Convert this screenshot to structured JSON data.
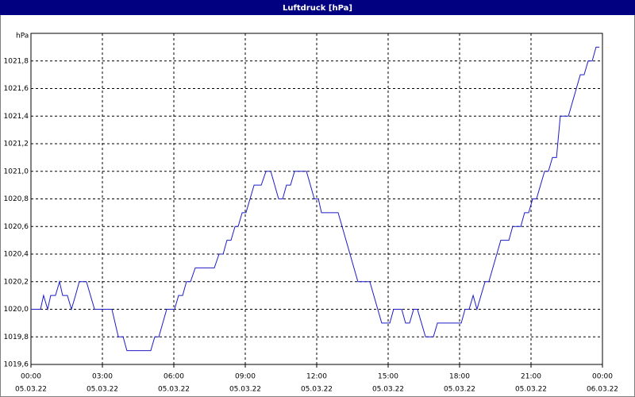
{
  "chart_data": {
    "type": "line",
    "title": "Luftdruck [hPa]",
    "y_label": "hPa",
    "x": [
      0,
      0.4,
      0.53,
      0.7,
      0.83,
      1.03,
      1.2,
      1.33,
      1.53,
      1.7,
      1.87,
      2.03,
      2.33,
      2.67,
      3.4,
      3.67,
      3.87,
      4.03,
      5.03,
      5.2,
      5.37,
      5.7,
      6.03,
      6.2,
      6.37,
      6.53,
      6.7,
      6.9,
      7.7,
      7.9,
      8.07,
      8.23,
      8.4,
      8.57,
      8.7,
      8.87,
      9.03,
      9.37,
      9.67,
      9.87,
      10.07,
      10.4,
      10.57,
      10.73,
      10.9,
      11.07,
      11.57,
      11.9,
      12.07,
      12.2,
      12.9,
      13.73,
      14.23,
      14.73,
      15.07,
      15.23,
      15.57,
      15.73,
      15.9,
      16.07,
      16.23,
      16.57,
      16.9,
      17.07,
      18.07,
      18.23,
      18.4,
      18.57,
      18.73,
      19.07,
      19.23,
      19.73,
      20.07,
      20.23,
      20.57,
      20.73,
      20.9,
      21.07,
      21.23,
      21.57,
      21.73,
      21.9,
      22.07,
      22.23,
      22.57,
      23.07,
      23.23,
      23.4,
      23.57,
      23.73,
      23.87
    ],
    "values": [
      1020.0,
      1020.0,
      1020.1,
      1020.0,
      1020.1,
      1020.1,
      1020.2,
      1020.1,
      1020.1,
      1020.0,
      1020.1,
      1020.2,
      1020.2,
      1020.0,
      1020.0,
      1019.8,
      1019.8,
      1019.7,
      1019.7,
      1019.8,
      1019.8,
      1020.0,
      1020.0,
      1020.1,
      1020.1,
      1020.2,
      1020.2,
      1020.3,
      1020.3,
      1020.4,
      1020.4,
      1020.5,
      1020.5,
      1020.6,
      1020.6,
      1020.7,
      1020.7,
      1020.9,
      1020.9,
      1021.0,
      1021.0,
      1020.8,
      1020.8,
      1020.9,
      1020.9,
      1021.0,
      1021.0,
      1020.8,
      1020.8,
      1020.7,
      1020.7,
      1020.2,
      1020.2,
      1019.9,
      1019.9,
      1020.0,
      1020.0,
      1019.9,
      1019.9,
      1020.0,
      1020.0,
      1019.8,
      1019.8,
      1019.9,
      1019.9,
      1020.0,
      1020.0,
      1020.1,
      1020.0,
      1020.2,
      1020.2,
      1020.5,
      1020.5,
      1020.6,
      1020.6,
      1020.7,
      1020.7,
      1020.8,
      1020.8,
      1021.0,
      1021.0,
      1021.1,
      1021.1,
      1021.4,
      1021.4,
      1021.7,
      1021.7,
      1021.8,
      1021.8,
      1021.9,
      1021.9
    ],
    "color": "#1c1cc8",
    "xlim": [
      0,
      24
    ],
    "xticks": [
      {
        "value": 0,
        "label": "00:00"
      },
      {
        "value": 3,
        "label": "03:00"
      },
      {
        "value": 6,
        "label": "06:00"
      },
      {
        "value": 9,
        "label": "09:00"
      },
      {
        "value": 12,
        "label": "12:00"
      },
      {
        "value": 15,
        "label": "15:00"
      },
      {
        "value": 18,
        "label": "18:00"
      },
      {
        "value": 21,
        "label": "21:00"
      },
      {
        "value": 24,
        "label": "00:00"
      }
    ],
    "xtick_dates": [
      "05.03.22",
      "05.03.22",
      "05.03.22",
      "05.03.22",
      "05.03.22",
      "05.03.22",
      "05.03.22",
      "05.03.22",
      "06.03.22"
    ],
    "ylim": [
      1019.6,
      1022.0
    ],
    "yticks": [
      {
        "value": 1019.6,
        "label": "1019,6"
      },
      {
        "value": 1019.8,
        "label": "1019,8"
      },
      {
        "value": 1020.0,
        "label": "1020,0"
      },
      {
        "value": 1020.2,
        "label": "1020,2"
      },
      {
        "value": 1020.4,
        "label": "1020,4"
      },
      {
        "value": 1020.6,
        "label": "1020,6"
      },
      {
        "value": 1020.8,
        "label": "1020,8"
      },
      {
        "value": 1021.0,
        "label": "1021,0"
      },
      {
        "value": 1021.2,
        "label": "1021,2"
      },
      {
        "value": 1021.4,
        "label": "1021,4"
      },
      {
        "value": 1021.6,
        "label": "1021,6"
      },
      {
        "value": 1021.8,
        "label": "1021,8"
      }
    ],
    "grid": true
  }
}
